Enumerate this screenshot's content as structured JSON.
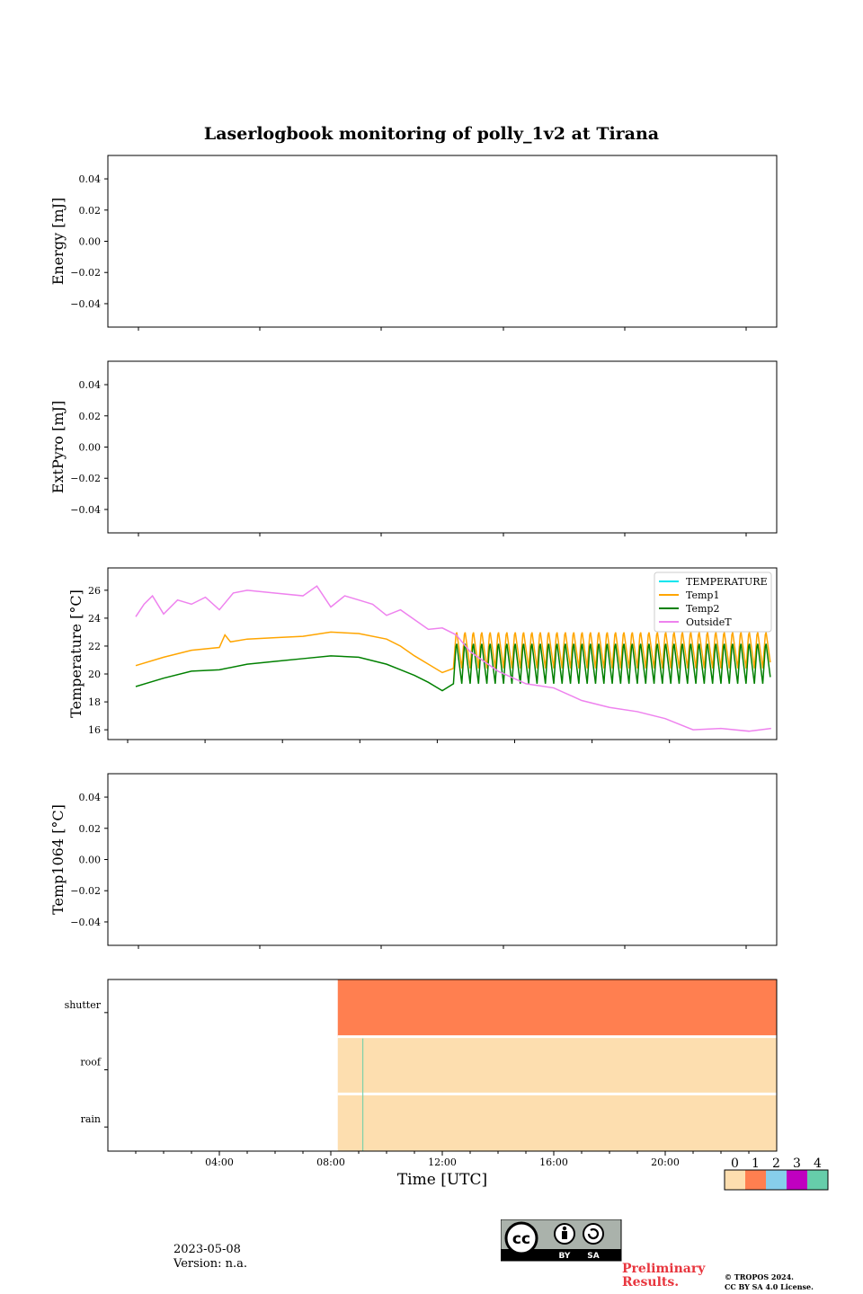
{
  "figure": {
    "title": "Laserlogbook monitoring of polly_1v2 at Tirana",
    "date": "2023-05-08",
    "version": "Version: n.a.",
    "preliminary_line1": "Preliminary",
    "preliminary_line2": "Results.",
    "copyright_line1": "© TROPOS 2024.",
    "copyright_line2": "CC BY SA 4.0 License.",
    "license_badge": {
      "cc": "cc",
      "by": "BY",
      "sa": "SA"
    }
  },
  "chart_data": [
    {
      "type": "line",
      "ylabel": "Energy [mJ]",
      "ylim": [
        -0.055,
        0.055
      ],
      "yticks": [
        0.04,
        0.02,
        0.0,
        -0.02,
        -0.04
      ],
      "yticklabels": [
        "0.04",
        "0.02",
        "0.00",
        "−0.02",
        "−0.04"
      ],
      "series": []
    },
    {
      "type": "line",
      "ylabel": "ExtPyro [mJ]",
      "ylim": [
        -0.055,
        0.055
      ],
      "yticks": [
        0.04,
        0.02,
        0.0,
        -0.02,
        -0.04
      ],
      "yticklabels": [
        "0.04",
        "0.02",
        "0.00",
        "−0.02",
        "−0.04"
      ],
      "series": []
    },
    {
      "type": "line",
      "ylabel": "Temperature [°C]",
      "ylim": [
        15.3,
        27.6
      ],
      "yticks": [
        16,
        18,
        20,
        22,
        24,
        26
      ],
      "yticklabels": [
        "16",
        "18",
        "20",
        "22",
        "24",
        "26"
      ],
      "legend_position": "top-right",
      "series": [
        {
          "name": "TEMPERATURE",
          "color": "#00e5ee",
          "x": [],
          "y": []
        },
        {
          "name": "Temp1",
          "color": "#ffa500",
          "x": [
            1.0,
            2.0,
            3.0,
            4.0,
            4.2,
            4.4,
            5.0,
            6.0,
            7.0,
            8.0,
            9.0,
            10.0,
            10.5,
            11.0,
            11.5,
            12.0
          ],
          "y": [
            20.6,
            21.2,
            21.7,
            21.9,
            22.8,
            22.3,
            22.5,
            22.6,
            22.7,
            23.0,
            22.9,
            22.5,
            22.0,
            21.3,
            20.7,
            20.1
          ],
          "oscillation": {
            "start": 12.4,
            "end": 23.8,
            "low": 20.4,
            "high": 23.2,
            "period": 0.3
          }
        },
        {
          "name": "Temp2",
          "color": "#008000",
          "x": [
            1.0,
            2.0,
            3.0,
            4.0,
            5.0,
            6.0,
            7.0,
            8.0,
            9.0,
            10.0,
            10.5,
            11.0,
            11.5,
            12.0
          ],
          "y": [
            19.1,
            19.7,
            20.2,
            20.3,
            20.7,
            20.9,
            21.1,
            21.3,
            21.2,
            20.7,
            20.3,
            19.9,
            19.4,
            18.8
          ],
          "oscillation": {
            "start": 12.4,
            "end": 23.8,
            "low": 19.3,
            "high": 22.4,
            "period": 0.3
          }
        },
        {
          "name": "OutsideT",
          "color": "#ee82ee",
          "x": [
            1.0,
            1.3,
            1.6,
            2.0,
            2.5,
            3.0,
            3.5,
            4.0,
            4.5,
            5.0,
            6.0,
            7.0,
            7.5,
            8.0,
            8.5,
            9.0,
            9.5,
            10.0,
            10.5,
            11.0,
            11.5,
            12.0,
            12.5,
            13.0,
            14.0,
            15.0,
            16.0,
            17.0,
            18.0,
            19.0,
            20.0,
            21.0,
            22.0,
            23.0,
            23.8
          ],
          "y": [
            24.1,
            25.0,
            25.6,
            24.3,
            25.3,
            25.0,
            25.5,
            24.6,
            25.8,
            26.0,
            25.8,
            25.6,
            26.3,
            24.8,
            25.6,
            25.3,
            25.0,
            24.2,
            24.6,
            23.9,
            23.2,
            23.3,
            22.8,
            21.6,
            20.2,
            19.3,
            19.0,
            18.1,
            17.6,
            17.3,
            16.8,
            16.0,
            16.1,
            15.9,
            16.1
          ]
        }
      ]
    },
    {
      "type": "line",
      "ylabel": "Temp1064 [°C]",
      "ylim": [
        -0.055,
        0.055
      ],
      "yticks": [
        0.04,
        0.02,
        0.0,
        -0.02,
        -0.04
      ],
      "yticklabels": [
        "0.04",
        "0.02",
        "0.00",
        "−0.02",
        "−0.04"
      ],
      "series": []
    },
    {
      "type": "heatmap",
      "xlabel": "Time [UTC]",
      "xticklabels": [
        "04:00",
        "08:00",
        "12:00",
        "16:00",
        "20:00"
      ],
      "xticks": [
        4,
        8,
        12,
        16,
        20
      ],
      "xlim": [
        0,
        24
      ],
      "rows": [
        "shutter",
        "roof",
        "rain"
      ],
      "segments": [
        {
          "row": "shutter",
          "start": 8.25,
          "end": 24,
          "status": 1
        },
        {
          "row": "roof",
          "start": 8.25,
          "end": 24,
          "status": 0
        },
        {
          "row": "rain",
          "start": 8.25,
          "end": 24,
          "status": 0
        }
      ],
      "marker": {
        "x": 9.15,
        "status": 4
      },
      "colorbar": {
        "labels": [
          "0",
          "1",
          "2",
          "3",
          "4"
        ],
        "colors": [
          "#fddeaf",
          "#ff7f50",
          "#87ceeb",
          "#c000c0",
          "#66cdaa"
        ]
      }
    }
  ]
}
